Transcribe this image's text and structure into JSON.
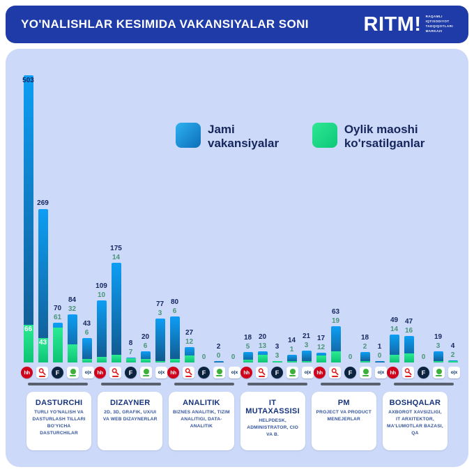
{
  "header": {
    "title": "YO'NALISHLAR KESIMIDA VAKANSIYALAR SONI",
    "logo_text": "RITM!",
    "logo_sub": "RAQAMLI\nIQTISODIYOT\nTADQIQOTLARI\nMARKAZI"
  },
  "legend": [
    {
      "label": "Jami vakansiyalar",
      "color_top": "#2fb1f2",
      "color_bottom": "#0c6fb8"
    },
    {
      "label": "Oylik maoshi ko'rsatilganlar",
      "color_top": "#2fe795",
      "color_bottom": "#0cc878"
    }
  ],
  "colors": {
    "header_bg": "#1e3ba8",
    "panel_bg": "#ccd9f8",
    "bar_blue_top": "#0d9ef4",
    "bar_blue_bottom": "#12568a",
    "bar_green_top": "#2cea93",
    "bar_green_bottom": "#0cc474",
    "total_label": "#14265e",
    "salary_label": "#4a9579"
  },
  "icons": {
    "hh": "hh",
    "f": "F",
    "olx": "o|x"
  },
  "chart_data": {
    "type": "bar",
    "title": "YO'NALISHLAR KESIMIDA VAKANSIYALAR SONI",
    "legend": [
      "Jami vakansiyalar",
      "Oylik maoshi ko'rsatilganlar"
    ],
    "ylim": [
      0,
      503
    ],
    "grid": false,
    "legend_position": "top-center",
    "sources": [
      "hh",
      "search",
      "f",
      "green-jobsite",
      "olx"
    ],
    "groups": [
      {
        "category": "DASTURCHI",
        "desc": "TURLI YO'NALISH VA DASTURLASH TILLARI BO'YICHA DASTURCHILAR",
        "totals": [
          503,
          269,
          70,
          84,
          43
        ],
        "salary_shown": [
          66,
          43,
          61,
          32,
          6
        ]
      },
      {
        "category": "DIZAYNER",
        "desc": "2D, 3D, GRAFIK, UX/UI VA WEB DIZAYNERLAR",
        "totals": [
          109,
          175,
          8,
          20,
          77
        ],
        "salary_shown": [
          10,
          14,
          7,
          6,
          3
        ]
      },
      {
        "category": "ANALITIK",
        "desc": "BIZNES ANALITIK, TIZIM ANALITIGI, DATA-ANALITIK",
        "totals": [
          80,
          27,
          0,
          2,
          0
        ],
        "salary_shown": [
          6,
          12,
          0,
          0,
          0
        ]
      },
      {
        "category": "IT MUTAXASSISI",
        "desc": "HELPDESK, ADMINISTRATOR, CIO VA B.",
        "totals": [
          18,
          20,
          3,
          14,
          21
        ],
        "salary_shown": [
          5,
          13,
          3,
          1,
          3
        ]
      },
      {
        "category": "PM",
        "desc": "PROJECT VA PRODUCT MENEJERLAR",
        "totals": [
          17,
          63,
          0,
          18,
          1
        ],
        "salary_shown": [
          12,
          19,
          0,
          2,
          0
        ]
      },
      {
        "category": "BOSHQALAR",
        "desc": "AXBOROT XAVSIZLIGI, IT ARXITEKTOR, MA'LUMOTLAR BAZASI, QA",
        "totals": [
          49,
          47,
          0,
          19,
          4
        ],
        "salary_shown": [
          14,
          16,
          0,
          3,
          2
        ]
      }
    ]
  }
}
